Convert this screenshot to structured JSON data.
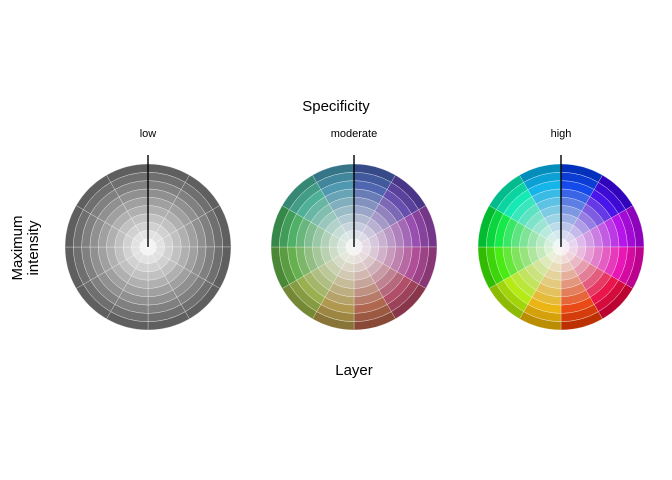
{
  "title": "Specificity",
  "xlabel": "Layer",
  "ylabel_line1": "Maximum",
  "ylabel_line2": "intensity",
  "panels": [
    {
      "label": "low",
      "chroma": 0
    },
    {
      "label": "moderate",
      "chroma": 0.45
    },
    {
      "label": "high",
      "chroma": 1
    }
  ],
  "rings": 10,
  "sectors": 12,
  "grid_color": "#ffffff",
  "marker_color": "#000000"
}
